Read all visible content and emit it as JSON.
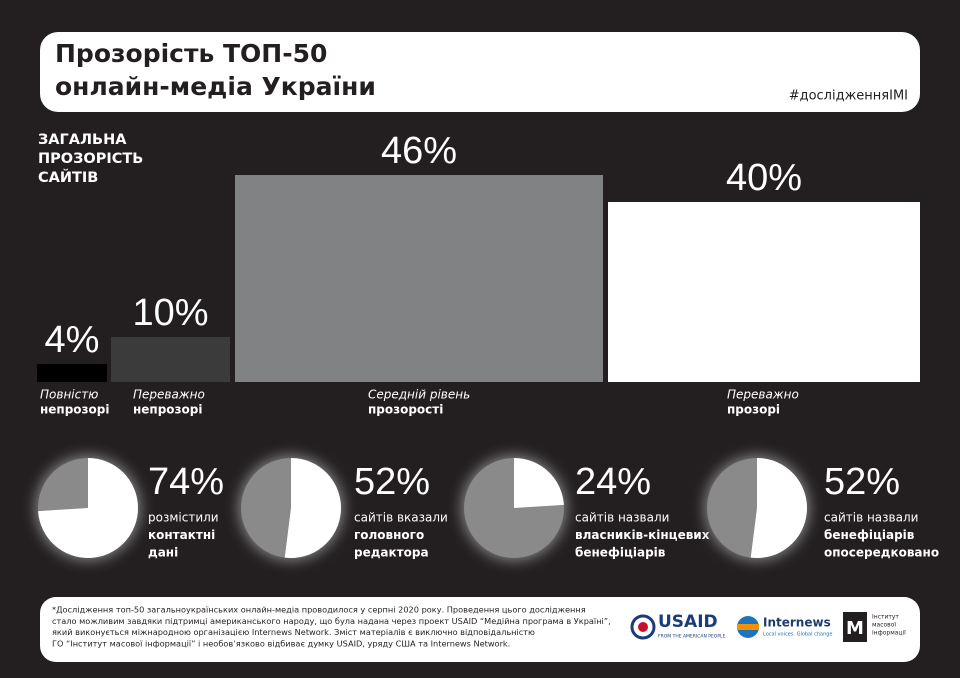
{
  "header": {
    "title_lines": [
      "Прозорість ТОП-50",
      "онлайн-медіа України"
    ],
    "hashtag": "#дослідженняІМІ"
  },
  "chart_data": [
    {
      "type": "bar",
      "title": "ЗАГАЛЬНА\nПРОЗОРІСТЬ\nСАЙТІВ",
      "categories": [
        [
          "Повністю",
          "непрозорі"
        ],
        [
          "Переважно",
          "непрозорі"
        ],
        [
          "Середній рівень",
          "прозорості"
        ],
        [
          "Переважно",
          "прозорі"
        ]
      ],
      "values": [
        4,
        10,
        46,
        40
      ],
      "value_labels": [
        "4%",
        "10%",
        "46%",
        "40%"
      ],
      "colors": [
        "#000000",
        "#3b3b3b",
        "#808284",
        "#ffffff"
      ]
    },
    {
      "type": "pie",
      "values": [
        74
      ],
      "value_labels": [
        "74%"
      ],
      "color": "#ffffff",
      "caption": [
        "розмістили",
        "контактні",
        "дані"
      ]
    },
    {
      "type": "pie",
      "values": [
        52
      ],
      "value_labels": [
        "52%"
      ],
      "color": "#ffffff",
      "caption": [
        "сайтів вказали",
        "головного",
        "редактора"
      ]
    },
    {
      "type": "pie",
      "values": [
        24
      ],
      "value_labels": [
        "24%"
      ],
      "color": "#ffffff",
      "caption": [
        "сайтів назвали",
        "власників-кінцевих",
        "бенефіціарів"
      ]
    },
    {
      "type": "pie",
      "values": [
        52
      ],
      "value_labels": [
        "52%"
      ],
      "color": "#ffffff",
      "caption": [
        "сайтів назвали",
        "бенефіціарів",
        "опосередковано"
      ]
    }
  ],
  "footer": {
    "note_lines": [
      "*Дослідження топ-50 загальноукраїнських онлайн-медіа проводилося у серпні 2020 року. Проведення цього дослідження",
      "стало можливим завдяки підтримці американського народу, що була надана через проект USAID “Медійна програма в Україні”,",
      "який виконується міжнародною організацією Internews Network. Зміст матеріалів є виключно відповідальністю",
      "ГО “Інститут масової інформації” і необов’язково відбиває думку USAID, уряду США та Internews Network."
    ],
    "logos": {
      "usaid": "USAID",
      "usaid_tagline": "FROM THE AMERICAN PEOPLE",
      "internews": "Internews",
      "internews_tagline": "Local voices. Global change",
      "imi": [
        "Інститут",
        "масової",
        "інформації"
      ]
    }
  }
}
